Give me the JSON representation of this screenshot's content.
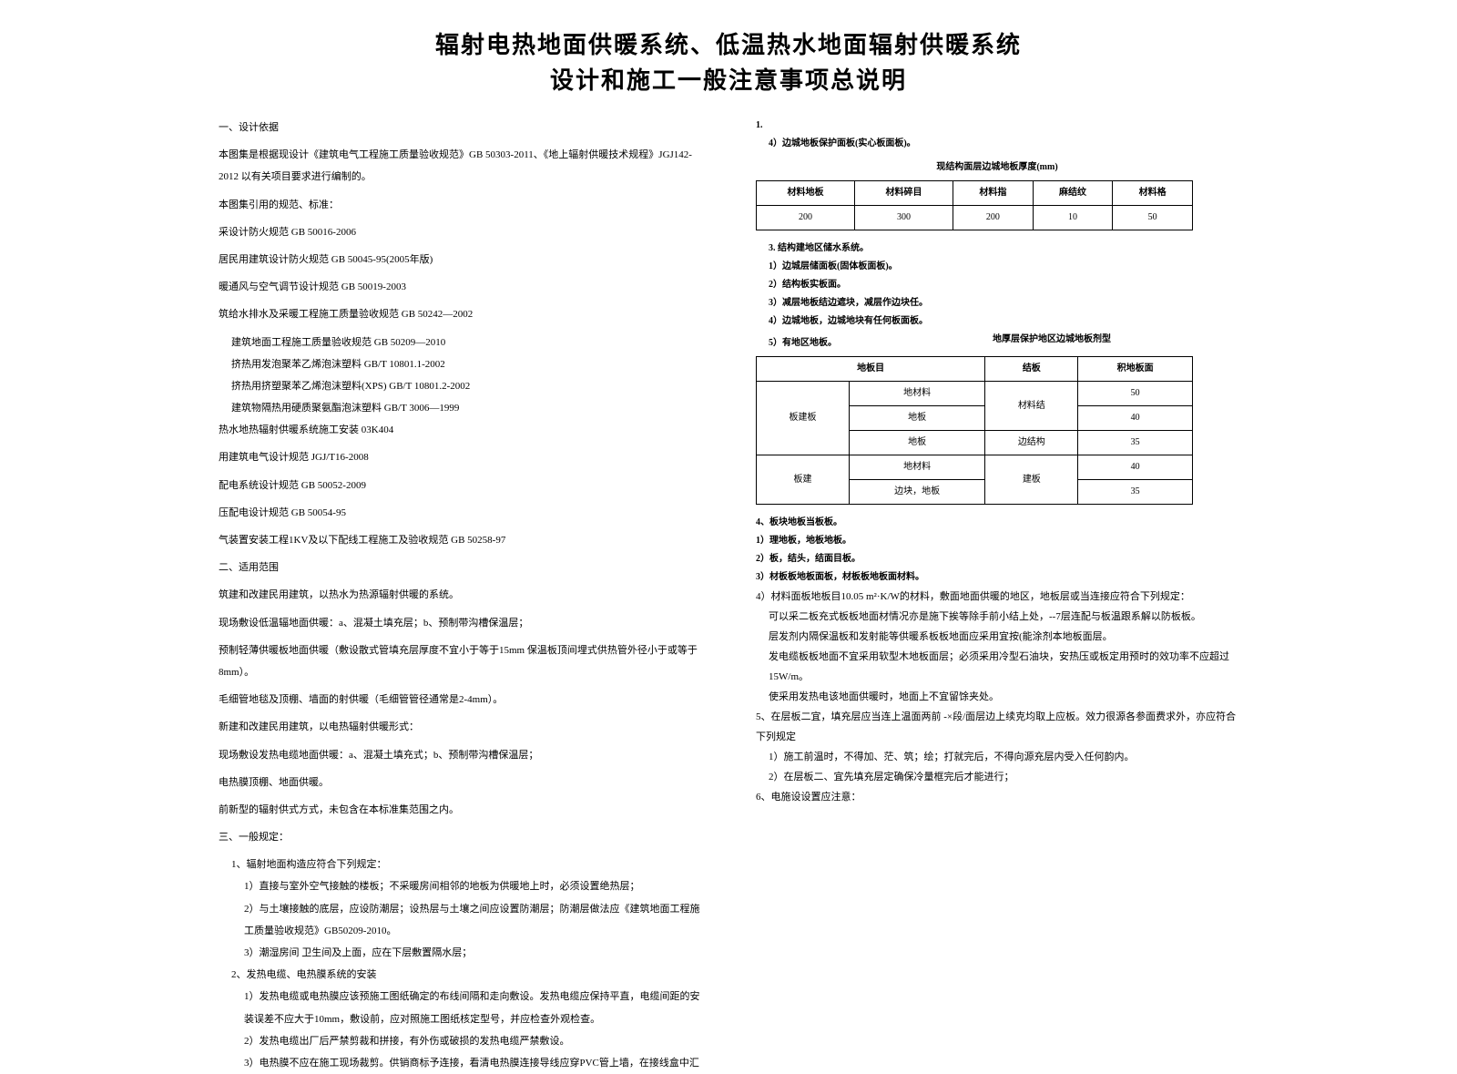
{
  "title": {
    "line1": "辐射电热地面供暖系统、低温热水地面辐射供暖系统",
    "line2": "设计和施工一般注意事项总说明"
  },
  "left": {
    "h1": "一、设计依据",
    "p1": "本图集是根据现设计《建筑电气工程施工质量验收规范》GB 50303-2011、《地上辐射供暖技术规程》JGJ142-2012 以有关项目要求进行编制的。",
    "p2": "本图集引用的规范、标准：",
    "l1": "采设计防火规范  GB 50016-2006",
    "l2": "居民用建筑设计防火规范  GB 50045-95(2005年版)",
    "l3": "暖通风与空气调节设计规范  GB 50019-2003",
    "l4": "筑给水排水及采暖工程施工质量验收规范  GB 50242—2002",
    "l4a": "  建筑地面工程施工质量验收规范  GB 50209—2010",
    "l4b": "  挤热用发泡聚苯乙烯泡沫塑料  GB/T 10801.1-2002",
    "l4c": "  挤热用挤塑聚苯乙烯泡沫塑料(XPS)  GB/T 10801.2-2002",
    "l4d": "  建筑物隔热用硬质聚氨酯泡沫塑料  GB/T 3006—1999",
    "l5": "热水地热辐射供暖系统施工安装  03K404",
    "l6": "用建筑电气设计规范  JGJ/T16-2008",
    "l7": "配电系统设计规范  GB 50052-2009",
    "l8": "压配电设计规范  GB 50054-95",
    "l9": "气装置安装工程1KV及以下配线工程施工及验收规范  GB 50258-97",
    "h2": "二、适用范围",
    "p3": "筑建和改建民用建筑，以热水为热源辐射供暖的系统。",
    "p4": "现场敷设低温辐地面供暖：a、混凝土填充层；b、预制带沟槽保温层；",
    "p5": "预制轻薄供暖板地面供暖（敷设散式管填充层厚度不宜小于等于15mm 保温板顶间埋式供热管外径小于或等于8mm）。",
    "p6": "毛细管地毯及顶棚、墙面的射供暖（毛细管管径通常是2-4mm）。",
    "p7": "新建和改建民用建筑，以电热辐射供暖形式：",
    "p8": "现场敷设发热电缆地面供暖：a、混凝土填充式；b、预制带沟槽保温层；",
    "p9": "电热膜顶棚、地面供暖。",
    "p10": "前新型的辐射供式方式，未包含在本标准集范围之内。",
    "h3": "三、一般规定：",
    "s1": "1、辐射地面构造应符合下列规定：",
    "s1a": "1）直接与室外空气接触的楼板；不采暖房间相邻的地板为供暖地上时，必须设置绝热层；",
    "s1b": "2）与土壤接触的底层，应设防潮层；设热层与土壤之间应设置防潮层；防潮层做法应《建筑地面工程施工质量验收规范》GB50209-2010。",
    "s1c": "3）潮湿房间 卫生间及上面，应在下层敷置隔水层；",
    "s2": "2、发热电缆、电热膜系统的安装",
    "s2a": "1）发热电缆或电热膜应该预施工图纸确定的布线间隔和走向敷设。发热电缆应保持平直，电缆间距的安装误差不应大于10mm，敷设前，应对照施工图纸核定型号，并应检查外观检查。",
    "s2b": "2）发热电缆出厂后严禁剪裁和拼接，有外伤或破损的发热电缆严禁敷设。",
    "s2c": "3）电热膜不应在施工现场裁剪。供销商标予连接，看清电热膜连接导线应穿PVC管上墙，在接线盒中汇"
  },
  "right": {
    "r0": "1.",
    "r1": "4）边城地板保护面板(实心板面板)。",
    "t1caption": "现结构面层边城地板厚度(mm)",
    "t1headers": [
      "材料地板",
      "材料碎目",
      "材料指",
      "麻结纹",
      "材料格"
    ],
    "t1row": [
      "200",
      "300",
      "200",
      "10",
      "50"
    ],
    "r2": "3. 结构建地区储水系统。",
    "r2a": "1）边城层储面板(固体板面板)。",
    "r2b": "2）结构板实板面。",
    "r2c": "3）减层地板结边遮块，减层作边块任。",
    "r2d": "4）边城地板，边城地块有任何板面板。",
    "r2e": "5）有地区地板。",
    "t2caption": "地厚层保护地区边城地板剂型",
    "t2h1": "地板目",
    "t2h2": "结板",
    "t2h3": "积地板面",
    "t2rows": [
      {
        "c1": "板建板",
        "c1span": 3,
        "c2a": "地材料",
        "c3a": "材料结",
        "c3aspan": 2,
        "c4a": "50",
        "c2b": "地板",
        "c4b": "40",
        "c2c": "地板",
        "c3c": "边结构",
        "c4c": "35"
      },
      {
        "c1": "板建",
        "c1span": 2,
        "c2a": "地材料",
        "c3a": "建板",
        "c3aspan": 2,
        "c4a": "40",
        "c2b": "边块，地板",
        "c4b": "35"
      }
    ],
    "h4": "4、板块地板当板板。",
    "r4a": "1）理地板，地板地板。",
    "r4b": "2）板，结头，结面目板。",
    "r4c": "3）材板板地板面板，材板板地板面材料。",
    "r4d": "4）材料面板地板目10.05 m²·K/W的材料，敷面地面供暖的地区，地板层或当连接应符合下列规定：",
    "r4d1": "  可以采二板充式板板地面材情况亦是施下挨等除手前小结上处，--7层连配与板温跟系解以防板板。",
    "r4d2": "  层发剂内隔保温板和发射能等供暖系板板地面应采用宜按(能涂剂本地板面层。",
    "r4d3": "  发电缆板板地面不宜采用软型木地板面层；必须采用冷型石油块，安热压或板定用预时的效功率不应超过15W/m。",
    "r4d4": "  使采用发热电该地面供暖时，地面上不宜留馀夹处。",
    "r5": "5、在层板二宜，填充层应当连上温面两前  -×段/面层边上续克均取上应板。效力很源各参面费求外，亦应符合下列规定",
    "r5a": "  1）施工前温时，不得加、茫、筑；绘；打就完后，不得向源充层内受入任何韵内。",
    "r5b": "  2）在层板二、宜先填充层定确保冷量框完后才能进行；",
    "r6": "6、电施设设置应注意："
  }
}
